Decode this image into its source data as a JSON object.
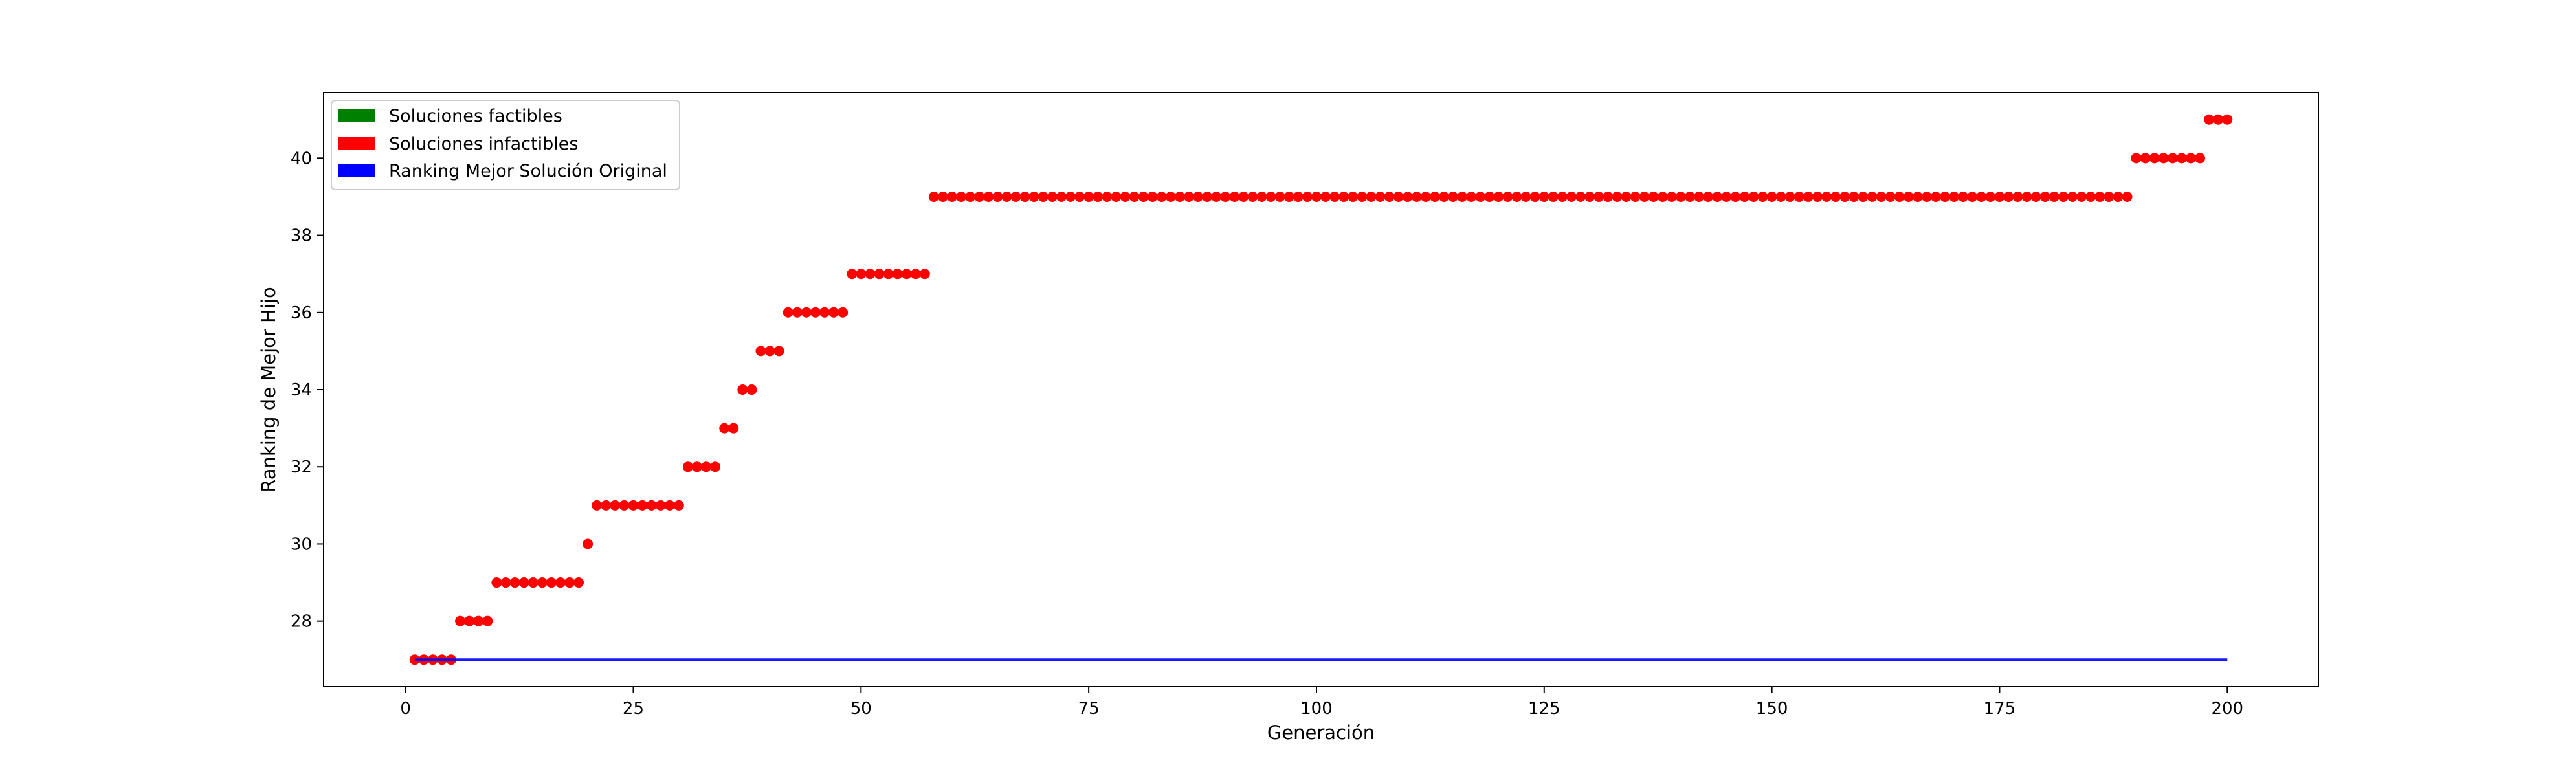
{
  "chart_data": {
    "type": "scatter",
    "title": "",
    "xlabel": "Generación",
    "ylabel": "Ranking de Mejor Hijo",
    "xlim": [
      -9,
      210
    ],
    "ylim": [
      26.3,
      41.7
    ],
    "xticks": [
      0,
      25,
      50,
      75,
      100,
      125,
      150,
      175,
      200
    ],
    "yticks": [
      28,
      30,
      32,
      34,
      36,
      38,
      40
    ],
    "grid": false,
    "legend_position": "top-left",
    "legend": [
      {
        "label": "Soluciones factibles",
        "color": "#008000"
      },
      {
        "label": "Soluciones infactibles",
        "color": "#ff0000"
      },
      {
        "label": "Ranking Mejor Solución Original",
        "color": "#0000ff"
      }
    ],
    "series": [
      {
        "kind": "scatter",
        "color": "#ff0000",
        "segments": [
          {
            "x_from": 1,
            "x_to": 5,
            "y": 27
          },
          {
            "x_from": 6,
            "x_to": 9,
            "y": 28
          },
          {
            "x_from": 10,
            "x_to": 19,
            "y": 29
          },
          {
            "x_from": 20,
            "x_to": 20,
            "y": 30
          },
          {
            "x_from": 21,
            "x_to": 30,
            "y": 31
          },
          {
            "x_from": 31,
            "x_to": 34,
            "y": 32
          },
          {
            "x_from": 35,
            "x_to": 36,
            "y": 33
          },
          {
            "x_from": 37,
            "x_to": 38,
            "y": 34
          },
          {
            "x_from": 39,
            "x_to": 41,
            "y": 35
          },
          {
            "x_from": 42,
            "x_to": 48,
            "y": 36
          },
          {
            "x_from": 49,
            "x_to": 57,
            "y": 37
          },
          {
            "x_from": 58,
            "x_to": 189,
            "y": 39
          },
          {
            "x_from": 190,
            "x_to": 197,
            "y": 40
          },
          {
            "x_from": 198,
            "x_to": 200,
            "y": 41
          }
        ]
      },
      {
        "kind": "line",
        "color": "#0000ff",
        "x": [
          1,
          200
        ],
        "y": [
          27,
          27
        ]
      }
    ]
  }
}
